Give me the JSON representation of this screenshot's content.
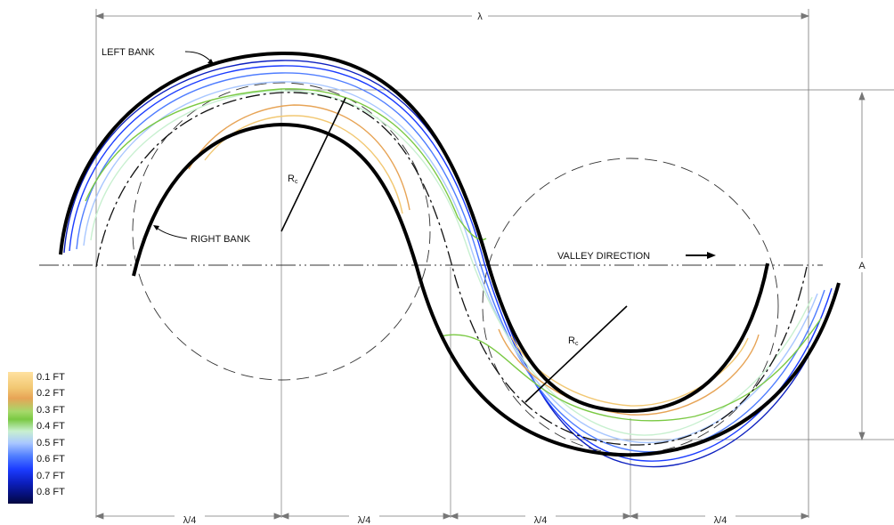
{
  "labels": {
    "left_bank": "LEFT BANK",
    "right_bank": "RIGHT BANK",
    "valley_direction": "VALLEY DIRECTION",
    "wavelength": "λ",
    "amplitude": "A",
    "radius_main": "R",
    "radius_sub": "c",
    "quarter_wavelength": "λ/4"
  },
  "legend": {
    "items": [
      {
        "label": "0.1 FT",
        "color": "#ffe1a0"
      },
      {
        "label": "0.2 FT",
        "color": "#e7a456"
      },
      {
        "label": "0.3 FT",
        "color": "#7ac943"
      },
      {
        "label": "0.4 FT",
        "color": "#c8f0d0"
      },
      {
        "label": "0.5 FT",
        "color": "#a9c7ff"
      },
      {
        "label": "0.6 FT",
        "color": "#1b3cff"
      },
      {
        "label": "0.7 FT",
        "color": "#0c1fbf"
      },
      {
        "label": "0.8 FT",
        "color": "#020840"
      }
    ]
  }
}
